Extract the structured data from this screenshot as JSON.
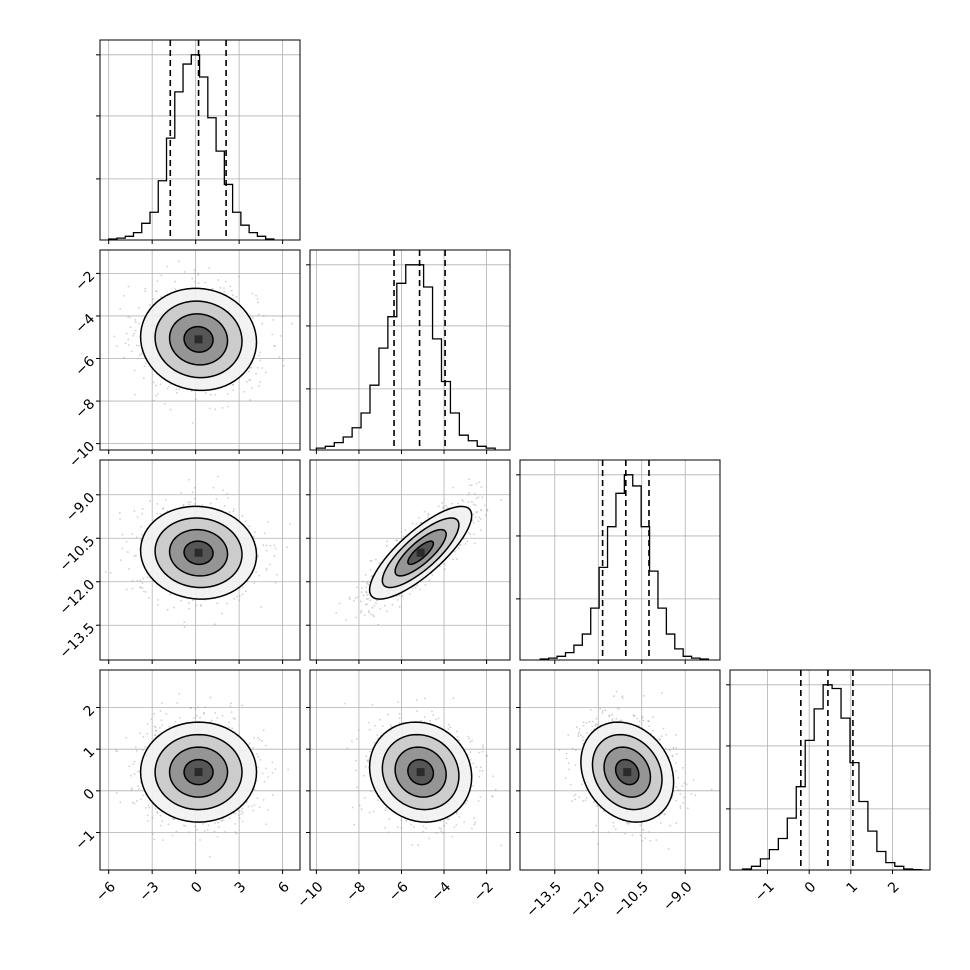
{
  "chart_data": {
    "type": "corner",
    "grid": true,
    "parameters": [
      {
        "range": [
          -6.6,
          7.2
        ],
        "ticks": [
          -6,
          -3,
          0,
          3,
          6
        ],
        "tick_labels": [
          "−6",
          "−3",
          "0",
          "3",
          "6"
        ],
        "mean": 0.2,
        "sd": 2.0,
        "quantiles": [
          -1.75,
          0.2,
          2.1
        ],
        "hist_edges": [
          -6.0,
          5.4
        ],
        "hist_density": [
          0.005,
          0.01,
          0.02,
          0.04,
          0.09,
          0.15,
          0.32,
          0.55,
          0.8,
          0.95,
          1.0,
          0.88,
          0.66,
          0.48,
          0.3,
          0.15,
          0.08,
          0.04,
          0.02,
          0.005
        ],
        "hist_tick_values": [
          0.33,
          0.67,
          1.0
        ]
      },
      {
        "range": [
          -10.3,
          -0.9
        ],
        "ticks": [
          -10,
          -8,
          -6,
          -4,
          -2
        ],
        "tick_labels": [
          "−10",
          "−8",
          "−6",
          "−4",
          "−2"
        ],
        "mean": -5.1,
        "sd": 1.2,
        "quantiles": [
          -6.35,
          -5.15,
          -3.95
        ],
        "hist_edges": [
          -10.0,
          -1.6
        ],
        "hist_density": [
          0.01,
          0.02,
          0.04,
          0.07,
          0.12,
          0.2,
          0.35,
          0.55,
          0.72,
          0.9,
          1.0,
          1.0,
          0.88,
          0.6,
          0.37,
          0.2,
          0.08,
          0.05,
          0.02,
          0.01
        ],
        "hist_tick_values": [
          0.33,
          0.67,
          1.0
        ]
      },
      {
        "range": [
          -14.7,
          -7.8
        ],
        "ticks": [
          -13.5,
          -12.0,
          -10.5,
          -9.0
        ],
        "tick_labels": [
          "−13.5",
          "−12.0",
          "−10.5",
          "−9.0"
        ],
        "mean": -11.0,
        "sd": 0.8,
        "quantiles": [
          -11.85,
          -11.05,
          -10.25
        ],
        "hist_edges": [
          -14.0,
          -8.2
        ],
        "hist_density": [
          0.005,
          0.01,
          0.02,
          0.04,
          0.08,
          0.14,
          0.28,
          0.5,
          0.72,
          0.9,
          1.0,
          0.94,
          0.72,
          0.48,
          0.28,
          0.14,
          0.06,
          0.02,
          0.01,
          0.005
        ],
        "hist_tick_values": [
          0.33,
          0.67,
          1.0
        ]
      },
      {
        "range": [
          -1.9,
          2.9
        ],
        "ticks": [
          -1,
          0,
          1,
          2
        ],
        "tick_labels": [
          "−1",
          "0",
          "1",
          "2"
        ],
        "mean": 0.45,
        "sd": 0.6,
        "quantiles": [
          -0.2,
          0.45,
          1.05
        ],
        "hist_edges": [
          -1.6,
          2.7
        ],
        "hist_density": [
          0.005,
          0.02,
          0.06,
          0.11,
          0.17,
          0.28,
          0.45,
          0.7,
          0.87,
          1.0,
          0.98,
          0.82,
          0.58,
          0.37,
          0.21,
          0.1,
          0.04,
          0.02,
          0.005,
          0.002
        ],
        "hist_tick_values": [
          0.33,
          0.67,
          1.0
        ]
      }
    ],
    "correlations": {
      "1_0": -0.05,
      "2_0": -0.05,
      "2_1": 0.8,
      "3_0": 0.0,
      "3_1": -0.1,
      "3_2": -0.2
    },
    "contour_levels_sigma": [
      0.5,
      1.0,
      1.5,
      2.0
    ],
    "colors": {
      "scatter": "#9a9a9a",
      "density_dark": "#2a2a2a",
      "line": "#000000",
      "grid": "#b0b0b0"
    }
  }
}
